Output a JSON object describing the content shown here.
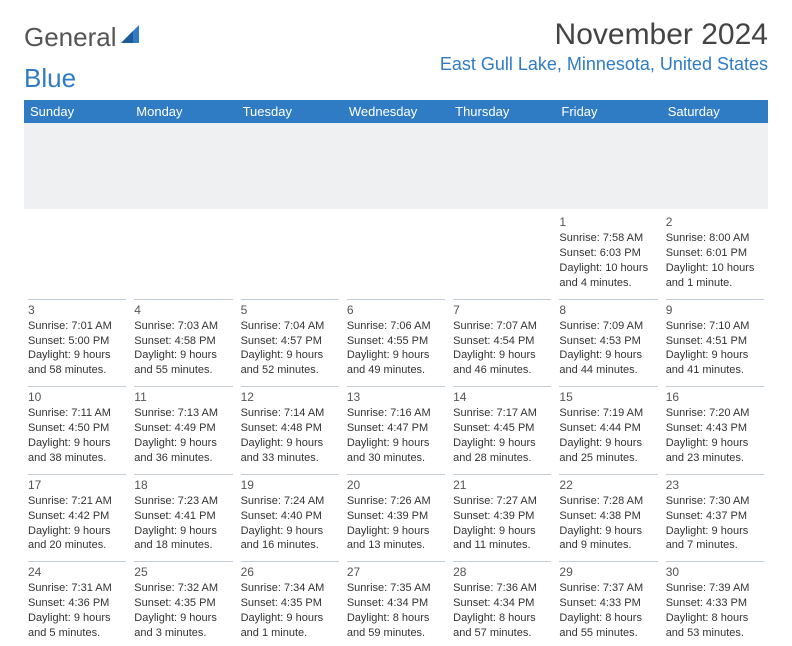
{
  "brand": {
    "part1": "General",
    "part2": "Blue"
  },
  "title": "November 2024",
  "location": "East Gull Lake, Minnesota, United States",
  "colors": {
    "header_bg": "#2f7cc4",
    "header_text": "#ffffff",
    "brand_blue": "#2f7cc4",
    "border": "#c4cdd6",
    "spacer": "#eef0f2"
  },
  "weekdays": [
    "Sunday",
    "Monday",
    "Tuesday",
    "Wednesday",
    "Thursday",
    "Friday",
    "Saturday"
  ],
  "weeks": [
    [
      null,
      null,
      null,
      null,
      null,
      {
        "n": "1",
        "sr": "Sunrise: 7:58 AM",
        "ss": "Sunset: 6:03 PM",
        "dl1": "Daylight: 10 hours",
        "dl2": "and 4 minutes."
      },
      {
        "n": "2",
        "sr": "Sunrise: 8:00 AM",
        "ss": "Sunset: 6:01 PM",
        "dl1": "Daylight: 10 hours",
        "dl2": "and 1 minute."
      }
    ],
    [
      {
        "n": "3",
        "sr": "Sunrise: 7:01 AM",
        "ss": "Sunset: 5:00 PM",
        "dl1": "Daylight: 9 hours",
        "dl2": "and 58 minutes."
      },
      {
        "n": "4",
        "sr": "Sunrise: 7:03 AM",
        "ss": "Sunset: 4:58 PM",
        "dl1": "Daylight: 9 hours",
        "dl2": "and 55 minutes."
      },
      {
        "n": "5",
        "sr": "Sunrise: 7:04 AM",
        "ss": "Sunset: 4:57 PM",
        "dl1": "Daylight: 9 hours",
        "dl2": "and 52 minutes."
      },
      {
        "n": "6",
        "sr": "Sunrise: 7:06 AM",
        "ss": "Sunset: 4:55 PM",
        "dl1": "Daylight: 9 hours",
        "dl2": "and 49 minutes."
      },
      {
        "n": "7",
        "sr": "Sunrise: 7:07 AM",
        "ss": "Sunset: 4:54 PM",
        "dl1": "Daylight: 9 hours",
        "dl2": "and 46 minutes."
      },
      {
        "n": "8",
        "sr": "Sunrise: 7:09 AM",
        "ss": "Sunset: 4:53 PM",
        "dl1": "Daylight: 9 hours",
        "dl2": "and 44 minutes."
      },
      {
        "n": "9",
        "sr": "Sunrise: 7:10 AM",
        "ss": "Sunset: 4:51 PM",
        "dl1": "Daylight: 9 hours",
        "dl2": "and 41 minutes."
      }
    ],
    [
      {
        "n": "10",
        "sr": "Sunrise: 7:11 AM",
        "ss": "Sunset: 4:50 PM",
        "dl1": "Daylight: 9 hours",
        "dl2": "and 38 minutes."
      },
      {
        "n": "11",
        "sr": "Sunrise: 7:13 AM",
        "ss": "Sunset: 4:49 PM",
        "dl1": "Daylight: 9 hours",
        "dl2": "and 36 minutes."
      },
      {
        "n": "12",
        "sr": "Sunrise: 7:14 AM",
        "ss": "Sunset: 4:48 PM",
        "dl1": "Daylight: 9 hours",
        "dl2": "and 33 minutes."
      },
      {
        "n": "13",
        "sr": "Sunrise: 7:16 AM",
        "ss": "Sunset: 4:47 PM",
        "dl1": "Daylight: 9 hours",
        "dl2": "and 30 minutes."
      },
      {
        "n": "14",
        "sr": "Sunrise: 7:17 AM",
        "ss": "Sunset: 4:45 PM",
        "dl1": "Daylight: 9 hours",
        "dl2": "and 28 minutes."
      },
      {
        "n": "15",
        "sr": "Sunrise: 7:19 AM",
        "ss": "Sunset: 4:44 PM",
        "dl1": "Daylight: 9 hours",
        "dl2": "and 25 minutes."
      },
      {
        "n": "16",
        "sr": "Sunrise: 7:20 AM",
        "ss": "Sunset: 4:43 PM",
        "dl1": "Daylight: 9 hours",
        "dl2": "and 23 minutes."
      }
    ],
    [
      {
        "n": "17",
        "sr": "Sunrise: 7:21 AM",
        "ss": "Sunset: 4:42 PM",
        "dl1": "Daylight: 9 hours",
        "dl2": "and 20 minutes."
      },
      {
        "n": "18",
        "sr": "Sunrise: 7:23 AM",
        "ss": "Sunset: 4:41 PM",
        "dl1": "Daylight: 9 hours",
        "dl2": "and 18 minutes."
      },
      {
        "n": "19",
        "sr": "Sunrise: 7:24 AM",
        "ss": "Sunset: 4:40 PM",
        "dl1": "Daylight: 9 hours",
        "dl2": "and 16 minutes."
      },
      {
        "n": "20",
        "sr": "Sunrise: 7:26 AM",
        "ss": "Sunset: 4:39 PM",
        "dl1": "Daylight: 9 hours",
        "dl2": "and 13 minutes."
      },
      {
        "n": "21",
        "sr": "Sunrise: 7:27 AM",
        "ss": "Sunset: 4:39 PM",
        "dl1": "Daylight: 9 hours",
        "dl2": "and 11 minutes."
      },
      {
        "n": "22",
        "sr": "Sunrise: 7:28 AM",
        "ss": "Sunset: 4:38 PM",
        "dl1": "Daylight: 9 hours",
        "dl2": "and 9 minutes."
      },
      {
        "n": "23",
        "sr": "Sunrise: 7:30 AM",
        "ss": "Sunset: 4:37 PM",
        "dl1": "Daylight: 9 hours",
        "dl2": "and 7 minutes."
      }
    ],
    [
      {
        "n": "24",
        "sr": "Sunrise: 7:31 AM",
        "ss": "Sunset: 4:36 PM",
        "dl1": "Daylight: 9 hours",
        "dl2": "and 5 minutes."
      },
      {
        "n": "25",
        "sr": "Sunrise: 7:32 AM",
        "ss": "Sunset: 4:35 PM",
        "dl1": "Daylight: 9 hours",
        "dl2": "and 3 minutes."
      },
      {
        "n": "26",
        "sr": "Sunrise: 7:34 AM",
        "ss": "Sunset: 4:35 PM",
        "dl1": "Daylight: 9 hours",
        "dl2": "and 1 minute."
      },
      {
        "n": "27",
        "sr": "Sunrise: 7:35 AM",
        "ss": "Sunset: 4:34 PM",
        "dl1": "Daylight: 8 hours",
        "dl2": "and 59 minutes."
      },
      {
        "n": "28",
        "sr": "Sunrise: 7:36 AM",
        "ss": "Sunset: 4:34 PM",
        "dl1": "Daylight: 8 hours",
        "dl2": "and 57 minutes."
      },
      {
        "n": "29",
        "sr": "Sunrise: 7:37 AM",
        "ss": "Sunset: 4:33 PM",
        "dl1": "Daylight: 8 hours",
        "dl2": "and 55 minutes."
      },
      {
        "n": "30",
        "sr": "Sunrise: 7:39 AM",
        "ss": "Sunset: 4:33 PM",
        "dl1": "Daylight: 8 hours",
        "dl2": "and 53 minutes."
      }
    ]
  ]
}
